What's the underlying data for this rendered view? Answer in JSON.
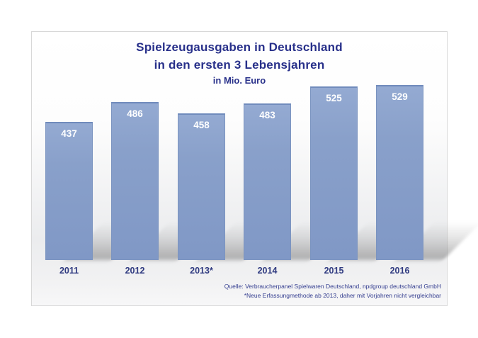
{
  "chart": {
    "title_line1": "Spielzeugausgaben in Deutschland",
    "title_line2": "in den ersten 3 Lebensjahren",
    "title_line3": "in Mio. Euro",
    "source_line1": "Quelle: Verbraucherpanel Spielwaren Deutschland, npdgroup deutschland GmbH",
    "source_line2": "*Neue Erfassungmethode ab 2013, daher mit Vorjahren nicht vergleichbar",
    "colors": {
      "title_text": "#28308a",
      "year_label_text": "#2f3a80",
      "value_label_text": "#ffffff",
      "source_text": "#333d8f",
      "bar_fill": "#879ec9",
      "bar_border": "#708bbc",
      "panel_border": "#d8d8d8"
    }
  },
  "chart_data": {
    "type": "bar",
    "title": "Spielzeugausgaben in Deutschland in den ersten 3 Lebensjahren",
    "subtitle": "in Mio. Euro",
    "categories": [
      "2011",
      "2012",
      "2013*",
      "2014",
      "2015",
      "2016"
    ],
    "values": [
      437,
      486,
      458,
      483,
      525,
      529
    ],
    "xlabel": "",
    "ylabel": "Mio. Euro",
    "ylim": [
      0,
      560
    ],
    "grid": false,
    "legend": false,
    "data_labels": true,
    "data_label_position": "inside-top",
    "bar_shadow": "perspective-lower-right"
  }
}
